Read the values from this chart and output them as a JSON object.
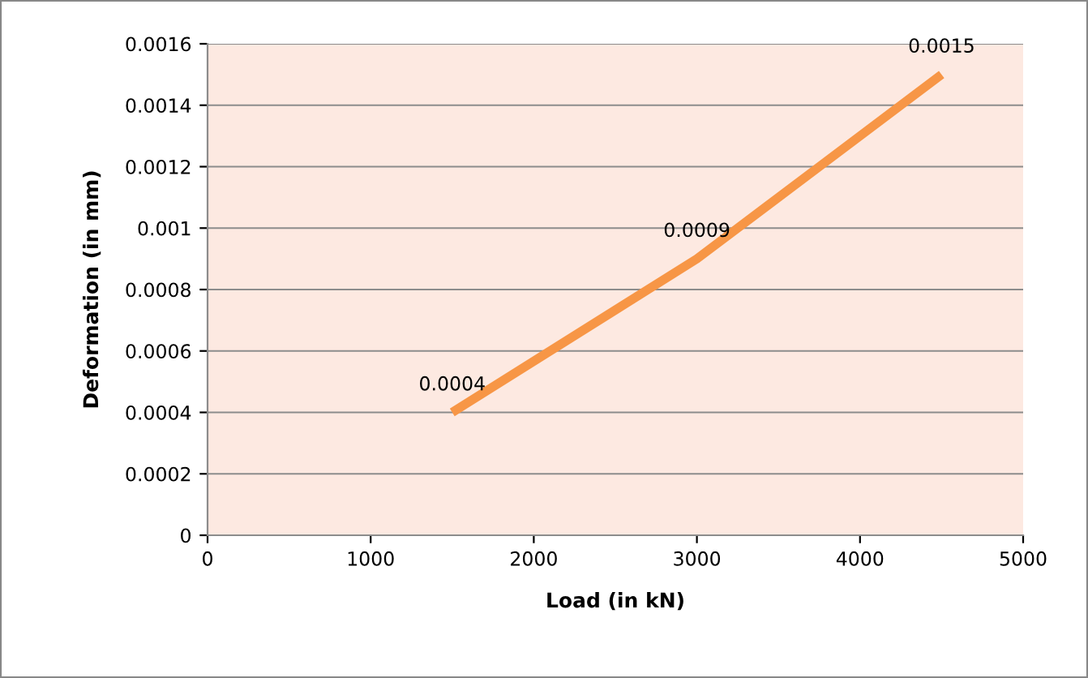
{
  "chart_data": {
    "type": "line",
    "xlabel": "Load (in kN)",
    "ylabel": "Deformation (in mm)",
    "x": [
      1500,
      3000,
      4500
    ],
    "series": [
      {
        "color": "#f79646",
        "values": [
          0.0004,
          0.0009,
          0.0015
        ]
      }
    ],
    "xlim": [
      0,
      5000
    ],
    "xticks": [
      0,
      1000,
      2000,
      3000,
      4000,
      5000
    ],
    "ylim": [
      0,
      0.0016
    ],
    "yticks": [
      0,
      0.0002,
      0.0004,
      0.0006,
      0.0008,
      0.001,
      0.0012,
      0.0014,
      0.0016
    ],
    "grid": "y",
    "data_labels": true,
    "marker": "none",
    "line_style": "solid"
  }
}
